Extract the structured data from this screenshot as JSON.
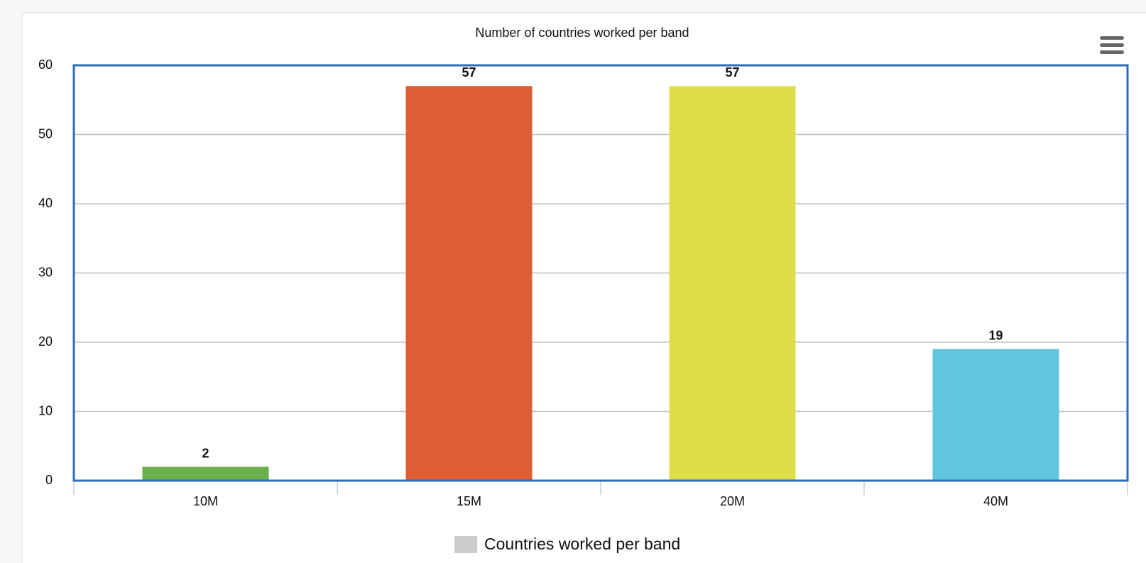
{
  "chart_data": {
    "type": "bar",
    "title": "Number of countries worked per band",
    "categories": [
      "10M",
      "15M",
      "20M",
      "40M"
    ],
    "series": [
      {
        "name": "Countries worked per band",
        "color": "#cccccc",
        "values": [
          2,
          57,
          57,
          19
        ],
        "colors": [
          "#6ab04c",
          "#de5f33",
          "#dede4a",
          "#60c6e0"
        ]
      }
    ],
    "ylim": [
      0,
      60
    ],
    "yticks": [
      0,
      10,
      20,
      30,
      40,
      50,
      60
    ],
    "grid": true
  }
}
